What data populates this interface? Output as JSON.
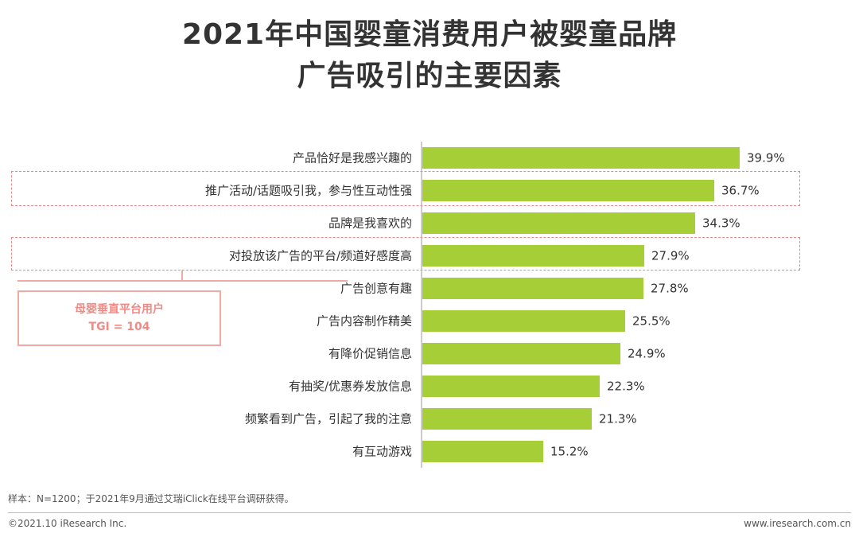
{
  "title_line1": "2021年中国婴童消费用户被婴童品牌",
  "title_line2": "广告吸引的主要因素",
  "chart_data": {
    "type": "bar",
    "orientation": "horizontal",
    "bar_color": "#a6cf37",
    "categories": [
      "产品恰好是我感兴趣的",
      "推广活动/话题吸引我，参与性互动性强",
      "品牌是我喜欢的",
      "对投放该广告的平台/频道好感度高",
      "广告创意有趣",
      "广告内容制作精美",
      "有降价促销信息",
      "有抽奖/优惠券发放信息",
      "频繁看到广告，引起了我的注意",
      "有互动游戏"
    ],
    "values": [
      39.9,
      36.7,
      34.3,
      27.9,
      27.8,
      25.5,
      24.9,
      22.3,
      21.3,
      15.2
    ],
    "value_labels": [
      "39.9%",
      "36.7%",
      "34.3%",
      "27.9%",
      "27.8%",
      "25.5%",
      "24.9%",
      "22.3%",
      "21.3%",
      "15.2%"
    ],
    "xlim": [
      0,
      40
    ],
    "highlighted_categories": [
      1,
      3
    ]
  },
  "callout": {
    "line1": "母婴垂直平台用户",
    "line2": "TGI = 104"
  },
  "note": "样本：N=1200；于2021年9月通过艾瑞iClick在线平台调研获得。",
  "footer": {
    "left": "©2021.10 iResearch Inc.",
    "right": "www.iresearch.com.cn"
  },
  "colors": {
    "bar": "#a6cf37",
    "highlight": "#e8888a",
    "callout": "#f08a84"
  }
}
